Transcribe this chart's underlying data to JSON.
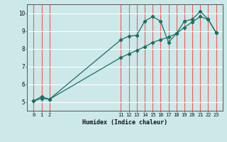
{
  "xlabel": "Humidex (Indice chaleur)",
  "bg_color": "#cce8e8",
  "grid_color": "#ff6666",
  "line_color": "#1a6e64",
  "xlim": [
    -0.8,
    23.8
  ],
  "ylim": [
    4.5,
    10.5
  ],
  "yticks": [
    5,
    6,
    7,
    8,
    9,
    10
  ],
  "xticks": [
    0,
    1,
    2,
    11,
    12,
    13,
    14,
    15,
    16,
    17,
    18,
    19,
    20,
    21,
    22,
    23
  ],
  "series1_x": [
    0,
    1,
    2,
    11,
    12,
    13,
    14,
    15,
    16,
    17,
    18,
    19,
    20,
    21,
    22,
    23
  ],
  "series1_y": [
    5.05,
    5.3,
    5.15,
    8.5,
    8.7,
    8.75,
    9.55,
    9.8,
    9.55,
    8.35,
    8.85,
    9.55,
    9.65,
    10.1,
    9.65,
    8.9
  ],
  "series2_x": [
    0,
    1,
    2,
    11,
    12,
    13,
    14,
    15,
    16,
    17,
    18,
    19,
    20,
    21,
    22,
    23
  ],
  "series2_y": [
    5.05,
    5.2,
    5.15,
    7.5,
    7.7,
    7.9,
    8.1,
    8.35,
    8.5,
    8.65,
    8.85,
    9.2,
    9.5,
    9.8,
    9.65,
    8.9
  ]
}
